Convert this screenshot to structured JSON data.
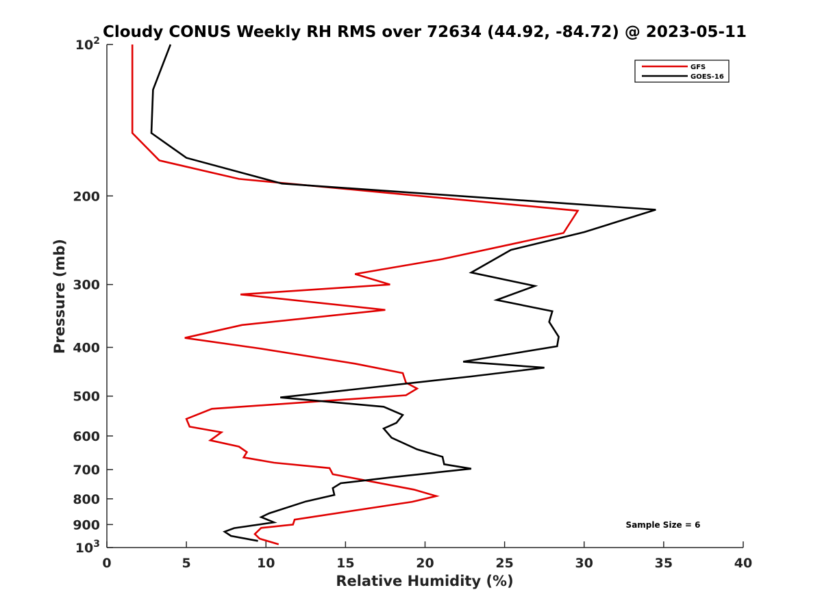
{
  "chart_data": {
    "type": "line",
    "title": "Cloudy CONUS Weekly RH RMS over 72634 (44.92, -84.72) @ 2023-05-11",
    "xlabel": "Relative Humidity (%)",
    "ylabel": "Pressure (mb)",
    "xlim": [
      0,
      40
    ],
    "ylim": [
      100,
      1000
    ],
    "y_scale": "log",
    "y_reversed": true,
    "x_ticks": [
      "0",
      "5",
      "10",
      "15",
      "20",
      "25",
      "30",
      "35",
      "40"
    ],
    "y_ticks": [
      {
        "value": 100,
        "base": "10",
        "exp": "2"
      },
      {
        "value": 200,
        "label": "200"
      },
      {
        "value": 300,
        "label": "300"
      },
      {
        "value": 400,
        "label": "400"
      },
      {
        "value": 500,
        "label": "500"
      },
      {
        "value": 600,
        "label": "600"
      },
      {
        "value": 700,
        "label": "700"
      },
      {
        "value": 800,
        "label": "800"
      },
      {
        "value": 900,
        "label": "900"
      },
      {
        "value": 1000,
        "base": "10",
        "exp": "3"
      }
    ],
    "grid": false,
    "legend_position": "top-right",
    "annotation": "Sample Size = 6",
    "series": [
      {
        "name": "GFS",
        "color": "#e00000",
        "points": [
          [
            1.6,
            100
          ],
          [
            1.6,
            125
          ],
          [
            1.6,
            150
          ],
          [
            3.3,
            170
          ],
          [
            8.3,
            185
          ],
          [
            29.6,
            214
          ],
          [
            28.7,
            237
          ],
          [
            21.1,
            267
          ],
          [
            15.6,
            286
          ],
          [
            17.8,
            300
          ],
          [
            8.4,
            314
          ],
          [
            17.5,
            337
          ],
          [
            8.5,
            361
          ],
          [
            4.9,
            383
          ],
          [
            9.6,
            402
          ],
          [
            15.6,
            431
          ],
          [
            18.6,
            450
          ],
          [
            18.8,
            470
          ],
          [
            19.5,
            483
          ],
          [
            18.8,
            498
          ],
          [
            6.6,
            530
          ],
          [
            5.0,
            555
          ],
          [
            5.2,
            575
          ],
          [
            7.2,
            590
          ],
          [
            6.5,
            612
          ],
          [
            8.3,
            630
          ],
          [
            8.8,
            646
          ],
          [
            8.6,
            662
          ],
          [
            10.5,
            678
          ],
          [
            14.0,
            695
          ],
          [
            14.2,
            715
          ],
          [
            19.3,
            767
          ],
          [
            20.7,
            790
          ],
          [
            19.2,
            811
          ],
          [
            11.8,
            880
          ],
          [
            11.7,
            900
          ],
          [
            9.7,
            914
          ],
          [
            9.3,
            940
          ],
          [
            9.6,
            960
          ],
          [
            10.8,
            985
          ]
        ]
      },
      {
        "name": "GOES-16",
        "color": "#000000",
        "points": [
          [
            4.0,
            100
          ],
          [
            2.9,
            123
          ],
          [
            2.8,
            150
          ],
          [
            5.0,
            168
          ],
          [
            11.0,
            189
          ],
          [
            34.5,
            213
          ],
          [
            30.0,
            236
          ],
          [
            25.4,
            256
          ],
          [
            22.9,
            284
          ],
          [
            26.9,
            302
          ],
          [
            24.5,
            322
          ],
          [
            28.0,
            339
          ],
          [
            27.8,
            356
          ],
          [
            28.4,
            381
          ],
          [
            28.3,
            398
          ],
          [
            22.4,
            427
          ],
          [
            27.5,
            439
          ],
          [
            22.9,
            457
          ],
          [
            15.5,
            485
          ],
          [
            10.9,
            503
          ],
          [
            17.4,
            525
          ],
          [
            18.6,
            545
          ],
          [
            18.2,
            565
          ],
          [
            17.4,
            580
          ],
          [
            17.9,
            605
          ],
          [
            19.5,
            638
          ],
          [
            21.1,
            660
          ],
          [
            21.2,
            683
          ],
          [
            22.9,
            697
          ],
          [
            17.9,
            725
          ],
          [
            14.7,
            745
          ],
          [
            14.2,
            762
          ],
          [
            14.3,
            786
          ],
          [
            12.5,
            810
          ],
          [
            10.2,
            855
          ],
          [
            9.7,
            870
          ],
          [
            10.5,
            891
          ],
          [
            8.0,
            915
          ],
          [
            7.4,
            930
          ],
          [
            7.8,
            948
          ],
          [
            9.5,
            970
          ]
        ]
      }
    ]
  }
}
